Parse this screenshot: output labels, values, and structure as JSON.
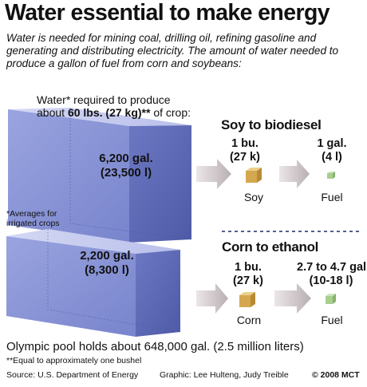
{
  "title": "Water essential to make energy",
  "intro": "Water is needed for mining coal, drilling oil, refining gasoline and generating and distributing electricity. The amount of water needed to produce a gallon of fuel from corn and soybeans:",
  "water_required": {
    "line1": "Water* required to produce",
    "line2_prefix": "about ",
    "line2_bold": "60 lbs. (27 kg)**",
    "line2_suffix": " of crop:"
  },
  "soy_box": {
    "gallons": "6,200 gal.",
    "liters": "(23,500 l)"
  },
  "corn_box": {
    "gallons": "2,200 gal.",
    "liters": "(8,300 l)"
  },
  "note_averages": "*Averages for irrigated crops",
  "soy_section": {
    "title": "Soy to biodiesel",
    "crop_amount": "1 bu.",
    "crop_weight": "(27 k)",
    "fuel_amount": "1 gal.",
    "fuel_liters": "(4 l)",
    "crop_label": "Soy",
    "fuel_label": "Fuel"
  },
  "corn_section": {
    "title": "Corn to ethanol",
    "crop_amount": "1 bu.",
    "crop_weight": "(27 k)",
    "fuel_amount": "2.7 to 4.7 gal.",
    "fuel_liters": "(10-18 l)",
    "crop_label": "Corn",
    "fuel_label": "Fuel"
  },
  "pool_note": "Olympic pool holds about 648,000 gal. (2.5 million liters)",
  "note_bushel": "**Equal to approximately one bushel",
  "footer": {
    "source": "Source: U.S. Department of Energy",
    "graphic": "Graphic: Lee Hulteng, Judy Treible",
    "copyright": "© 2008 MCT"
  },
  "colors": {
    "water_front": "#8a95d6",
    "water_side": "#5f6bb6",
    "water_top": "#c2c8ee",
    "crop_cube": "#d9b25c",
    "fuel_cube": "#a8cf8e",
    "arrow": "#c9c1c3"
  }
}
